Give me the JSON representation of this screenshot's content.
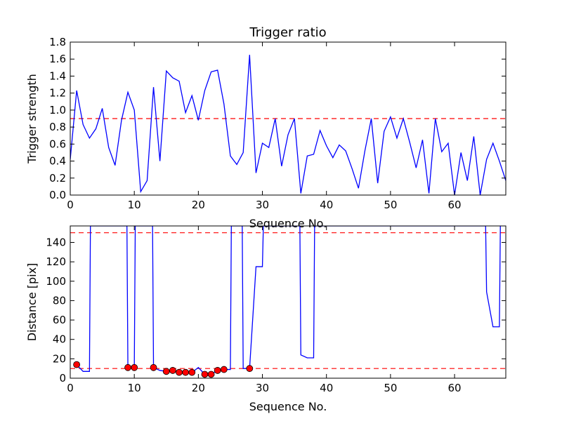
{
  "chart_data": [
    {
      "type": "line",
      "title": "Trigger ratio",
      "xlabel": "Sequence No.",
      "ylabel": "Trigger strength",
      "xlim": [
        0,
        68
      ],
      "ylim": [
        0,
        1.8
      ],
      "xticks": [
        0,
        10,
        20,
        30,
        40,
        50,
        60
      ],
      "yticks": [
        0.0,
        0.2,
        0.4,
        0.6,
        0.8,
        1.0,
        1.2,
        1.4,
        1.6,
        1.8
      ],
      "ytick_decimals": 1,
      "grid": false,
      "threshold": {
        "value": 0.9,
        "color": "#ff0000",
        "style": "dashed"
      },
      "series": [
        {
          "color": "#0000ff",
          "x": [
            0,
            1,
            2,
            3,
            4,
            5,
            6,
            7,
            8,
            9,
            10,
            11,
            12,
            13,
            14,
            15,
            16,
            17,
            18,
            19,
            20,
            21,
            22,
            23,
            24,
            25,
            26,
            27,
            28,
            29,
            30,
            31,
            32,
            33,
            34,
            35,
            36,
            37,
            38,
            39,
            40,
            41,
            42,
            43,
            44,
            45,
            46,
            47,
            48,
            49,
            50,
            51,
            52,
            53,
            54,
            55,
            56,
            57,
            58,
            59,
            60,
            61,
            62,
            63,
            64,
            65,
            66,
            67,
            68
          ],
          "y": [
            0.42,
            1.23,
            0.83,
            0.67,
            0.78,
            1.02,
            0.56,
            0.35,
            0.88,
            1.21,
            1.0,
            0.04,
            0.17,
            1.27,
            0.4,
            1.46,
            1.38,
            1.34,
            0.97,
            1.17,
            0.88,
            1.23,
            1.45,
            1.47,
            1.07,
            0.46,
            0.36,
            0.5,
            1.65,
            0.26,
            0.61,
            0.56,
            0.9,
            0.34,
            0.71,
            0.9,
            0.02,
            0.46,
            0.48,
            0.76,
            0.58,
            0.44,
            0.59,
            0.52,
            0.31,
            0.08,
            0.52,
            0.9,
            0.14,
            0.75,
            0.92,
            0.67,
            0.9,
            0.62,
            0.32,
            0.65,
            0.02,
            0.9,
            0.51,
            0.61,
            0.0,
            0.5,
            0.17,
            0.69,
            0.0,
            0.42,
            0.61,
            0.4,
            0.17
          ]
        }
      ]
    },
    {
      "type": "line",
      "title": "",
      "xlabel": "Sequence No.",
      "ylabel": "Distance [pix]",
      "xlim": [
        0,
        68
      ],
      "ylim": [
        0,
        157
      ],
      "xticks": [
        0,
        10,
        20,
        30,
        40,
        50,
        60
      ],
      "yticks": [
        0,
        20,
        40,
        60,
        80,
        100,
        120,
        140
      ],
      "ytick_decimals": 0,
      "grid": false,
      "thresholds": [
        {
          "value": 150,
          "color": "#ff0000",
          "style": "dashed"
        },
        {
          "value": 10,
          "color": "#ff0000",
          "style": "dashed"
        }
      ],
      "series": [
        {
          "color": "#0000ff",
          "x": [
            1,
            2,
            3,
            3.15,
            8.85,
            9,
            10,
            10.15,
            12.85,
            13,
            14,
            15,
            16,
            17,
            18,
            19,
            20,
            21,
            22,
            23,
            24,
            25,
            25.15,
            26.85,
            27,
            28,
            29,
            30,
            30.15,
            35.85,
            36,
            37,
            38,
            38.15,
            64.85,
            65,
            66,
            67,
            67.15
          ],
          "y": [
            14,
            7,
            7,
            157,
            157,
            11,
            11,
            157,
            157,
            11,
            8,
            7,
            8,
            6,
            6,
            6,
            11,
            4,
            4,
            8,
            9,
            9,
            157,
            157,
            10,
            10,
            115,
            115,
            157,
            157,
            24,
            21,
            21,
            157,
            157,
            89,
            53,
            53,
            157
          ]
        }
      ],
      "markers": {
        "color": "#ff0000",
        "x": [
          1,
          9,
          10,
          13,
          15,
          16,
          17,
          18,
          19,
          21,
          22,
          23,
          24,
          28
        ],
        "y": [
          14,
          11,
          11,
          11,
          7,
          8,
          6,
          6,
          6,
          4,
          4,
          8,
          9,
          10
        ]
      }
    }
  ]
}
